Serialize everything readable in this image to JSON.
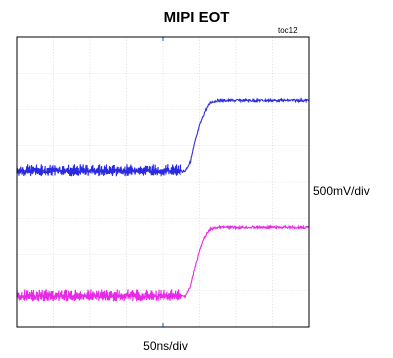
{
  "chart_data": {
    "type": "line",
    "title": "MIPI EOT",
    "figure_id": "toc12",
    "vertical_scale": "500mV/div",
    "horizontal_scale": "50ns/div",
    "x_divisions": 8,
    "y_divisions": 8,
    "xlim": [
      0,
      8
    ],
    "ylim": [
      0,
      8
    ],
    "grid": true,
    "series": [
      {
        "color": "#2a2ae0",
        "x": [
          0,
          4.6,
          4.75,
          4.85,
          5.0,
          5.15,
          5.3,
          5.5,
          8
        ],
        "y": [
          4.3,
          4.3,
          4.55,
          5.0,
          5.55,
          5.95,
          6.2,
          6.25,
          6.25
        ]
      },
      {
        "color": "#e62ae6",
        "x": [
          0,
          4.6,
          4.75,
          4.85,
          5.0,
          5.15,
          5.3,
          5.5,
          8
        ],
        "y": [
          0.85,
          0.85,
          1.1,
          1.55,
          2.1,
          2.5,
          2.7,
          2.75,
          2.75
        ]
      }
    ]
  }
}
